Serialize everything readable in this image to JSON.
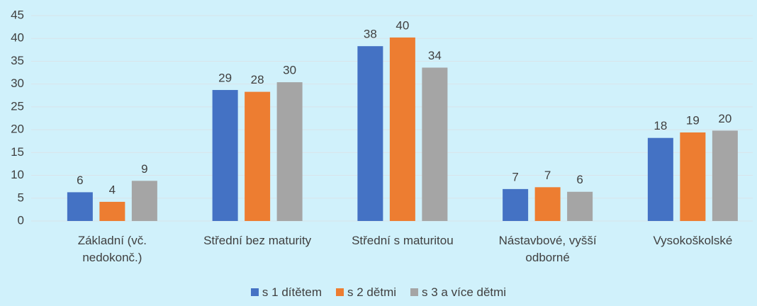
{
  "chart_data": {
    "type": "bar",
    "categories": [
      "Základní (vč. nedokonč.)",
      "Střední bez maturity",
      "Střední s maturitou",
      "Nástavbové, vyšší odborné",
      "Vysokoškolské"
    ],
    "series": [
      {
        "name": "s 1 dítětem",
        "color": "#4472c4",
        "values": [
          6.3,
          28.7,
          38.3,
          7.0,
          18.2
        ],
        "value_labels": [
          "6",
          "29",
          "38",
          "7",
          "18"
        ]
      },
      {
        "name": "s 2 dětmi",
        "color": "#ed7d31",
        "values": [
          4.2,
          28.3,
          40.2,
          7.4,
          19.4
        ],
        "value_labels": [
          "4",
          "28",
          "40",
          "7",
          "19"
        ]
      },
      {
        "name": "s 3 a více dětmi",
        "color": "#a5a5a5",
        "values": [
          8.8,
          30.4,
          33.6,
          6.4,
          19.8
        ],
        "value_labels": [
          "9",
          "30",
          "34",
          "6",
          "20"
        ]
      }
    ],
    "ylim": [
      0,
      45
    ],
    "yticks": [
      0,
      5,
      10,
      15,
      20,
      25,
      30,
      35,
      40,
      45
    ],
    "grid": true,
    "legend": "bottom"
  }
}
